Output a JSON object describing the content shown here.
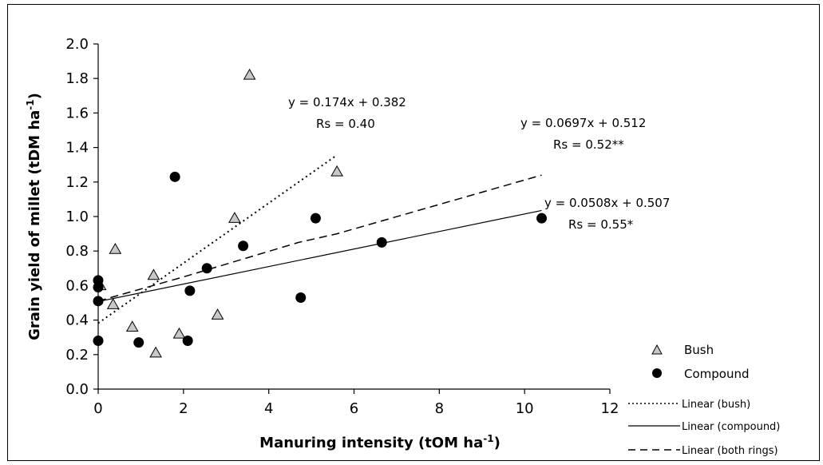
{
  "chart_data": {
    "type": "scatter",
    "xlabel": "Manuring intensity (tOM ha",
    "xlabel_sup": "-1",
    "xlabel_end": ")",
    "ylabel": "Grain yield of millet (tDM ha",
    "ylabel_sup": "-1",
    "ylabel_end": ")",
    "xlim": [
      0,
      12
    ],
    "ylim": [
      0,
      2.0
    ],
    "xticks": [
      "0",
      "2",
      "4",
      "6",
      "8",
      "10",
      "12"
    ],
    "yticks": [
      "0.0",
      "0.2",
      "0.4",
      "0.6",
      "0.8",
      "1.0",
      "1.2",
      "1.4",
      "1.6",
      "1.8",
      "2.0"
    ],
    "series": [
      {
        "name": "Bush",
        "marker": "triangle",
        "color": "#c8c8c8",
        "points": [
          [
            0.05,
            0.6
          ],
          [
            0.35,
            0.49
          ],
          [
            0.4,
            0.81
          ],
          [
            0.8,
            0.36
          ],
          [
            1.3,
            0.66
          ],
          [
            1.35,
            0.21
          ],
          [
            1.9,
            0.32
          ],
          [
            2.8,
            0.43
          ],
          [
            3.2,
            0.99
          ],
          [
            3.55,
            1.82
          ],
          [
            5.6,
            1.26
          ]
        ]
      },
      {
        "name": "Compound",
        "marker": "circle",
        "color": "#000000",
        "points": [
          [
            0.0,
            0.63
          ],
          [
            0.0,
            0.59
          ],
          [
            0.0,
            0.51
          ],
          [
            0.0,
            0.28
          ],
          [
            0.95,
            0.27
          ],
          [
            1.8,
            1.23
          ],
          [
            2.1,
            0.28
          ],
          [
            2.15,
            0.57
          ],
          [
            2.55,
            0.7
          ],
          [
            3.4,
            0.83
          ],
          [
            4.75,
            0.53
          ],
          [
            5.1,
            0.99
          ],
          [
            6.65,
            0.85
          ],
          [
            10.4,
            0.99
          ]
        ]
      }
    ],
    "trendlines": [
      {
        "name": "Linear (bush)",
        "style": "dotted",
        "x": [
          0,
          5.6
        ],
        "y": [
          0.382,
          1.356
        ]
      },
      {
        "name": "Linear (compound)",
        "style": "solid",
        "x": [
          0,
          10.4
        ],
        "y": [
          0.507,
          1.035
        ]
      },
      {
        "name": "Linear (both rings)",
        "style": "dashed",
        "x": [
          0,
          2,
          4.7,
          5.6,
          10.4
        ],
        "y": [
          0.51,
          0.65,
          0.85,
          0.9,
          1.24
        ]
      }
    ],
    "annotations": [
      {
        "lines": [
          "y = 0.174x + 0.382",
          "Rs = 0.40"
        ]
      },
      {
        "lines": [
          "y = 0.0697x + 0.512",
          "Rs = 0.52**"
        ]
      },
      {
        "lines": [
          "y = 0.0508x + 0.507",
          "Rs = 0.55*"
        ]
      }
    ],
    "legend_position": "bottom-right",
    "grid": false
  }
}
